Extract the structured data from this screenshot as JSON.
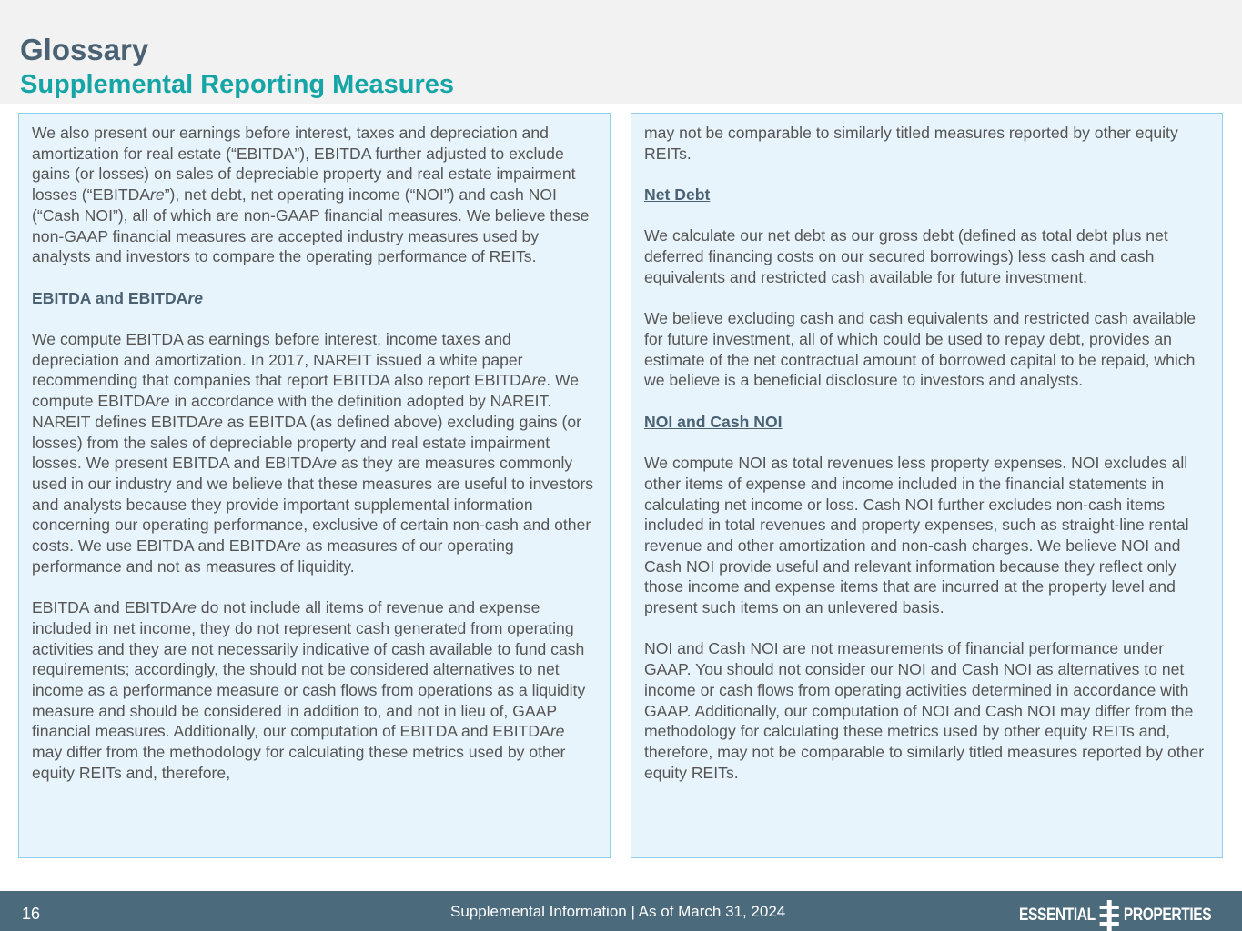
{
  "header": {
    "title": "Glossary",
    "subtitle": "Supplemental Reporting Measures"
  },
  "left": [
    {
      "type": "p",
      "segs": [
        [
          "We also present our earnings before interest, taxes and depreciation and amortization for real estate (“EBITDA”), EBITDA further adjusted to exclude gains (or losses) on sales of depreciable property and real estate impairment losses (“EBITDA",
          0
        ],
        [
          "re",
          1
        ],
        [
          "”), net debt, net operating income (“NOI”) and cash NOI (“Cash NOI”), all of which are non-GAAP financial measures. We believe these non-GAAP financial measures are accepted industry measures used by analysts and investors to compare the operating performance of REITs.",
          0
        ]
      ]
    },
    {
      "type": "h",
      "segs": [
        [
          "EBITDA and EBITDA",
          0
        ],
        [
          "re",
          1
        ]
      ]
    },
    {
      "type": "p",
      "segs": [
        [
          "We compute EBITDA as earnings before interest, income taxes and depreciation and amortization. In 2017, NAREIT issued a white paper recommending that companies that report EBITDA also report EBITDA",
          0
        ],
        [
          "re",
          1
        ],
        [
          ". We compute EBITDA",
          0
        ],
        [
          "re",
          1
        ],
        [
          " in accordance with the definition adopted by NAREIT. NAREIT defines EBITDA",
          0
        ],
        [
          "re",
          1
        ],
        [
          " as EBITDA (as defined above) excluding gains (or losses) from the sales of depreciable property and real estate impairment losses. We present EBITDA and EBITDA",
          0
        ],
        [
          "re",
          1
        ],
        [
          " as they are measures commonly used in our industry and we believe that these measures are useful to investors and analysts because they provide important supplemental information concerning our operating performance, exclusive of certain non-cash and other costs. We use EBITDA and EBITDA",
          0
        ],
        [
          "re",
          1
        ],
        [
          " as measures of our operating performance and not as measures of liquidity.",
          0
        ]
      ]
    },
    {
      "type": "p",
      "segs": [
        [
          "EBITDA and EBITDA",
          0
        ],
        [
          "re",
          1
        ],
        [
          " do not include all items of revenue and expense included in net income, they do not represent cash generated from operating activities and they are not necessarily indicative of cash available to fund cash requirements; accordingly, the should not be considered alternatives to net income as a performance measure or cash flows from operations as a liquidity measure and should be considered in addition to, and not in lieu of, GAAP financial measures. Additionally, our computation of EBITDA and EBITDA",
          0
        ],
        [
          "re",
          1
        ],
        [
          " may differ from the methodology for calculating these metrics used by other equity REITs and, therefore,",
          0
        ]
      ]
    }
  ],
  "right": [
    {
      "type": "p",
      "segs": [
        [
          "may not be comparable to similarly titled measures reported by other equity REITs.",
          0
        ]
      ]
    },
    {
      "type": "h",
      "segs": [
        [
          "Net Debt",
          0
        ]
      ]
    },
    {
      "type": "p",
      "segs": [
        [
          "We calculate our net debt as our gross debt (defined as total debt plus net deferred financing costs on our secured borrowings) less cash and cash equivalents and restricted cash available for future investment.",
          0
        ]
      ]
    },
    {
      "type": "p",
      "segs": [
        [
          "We believe excluding cash and cash equivalents and restricted cash available for future investment, all of which could be used to repay debt, provides an estimate of the net contractual amount of borrowed capital to be repaid, which we believe is a beneficial disclosure to investors and analysts.",
          0
        ]
      ]
    },
    {
      "type": "h",
      "segs": [
        [
          "NOI and Cash NOI",
          0
        ]
      ]
    },
    {
      "type": "p",
      "segs": [
        [
          "We compute NOI as total revenues less property expenses. NOI excludes all other items of expense and income included in the financial statements in calculating net income or loss. Cash NOI further excludes non-cash items included in total revenues and property expenses, such as straight-line rental revenue and other amortization and non-cash charges. We believe NOI and Cash NOI provide useful and relevant information because they reflect only those income and expense items that are incurred at the property level and present such items on an unlevered basis.",
          0
        ]
      ]
    },
    {
      "type": "p",
      "segs": [
        [
          "NOI and Cash NOI are not measurements of financial performance under GAAP. You should not consider our NOI and Cash NOI as alternatives to net income or cash flows from operating activities determined in accordance with GAAP. Additionally, our computation of NOI and Cash NOI may differ from the methodology for calculating these metrics used by other equity REITs and, therefore, may not be comparable to similarly titled measures reported by other equity REITs.",
          0
        ]
      ]
    }
  ],
  "footer": {
    "page": "16",
    "text": "Supplemental Information |  As of March 31, 2024",
    "logo_left": "ESSENTIAL",
    "logo_right": "PROPERTIES"
  }
}
